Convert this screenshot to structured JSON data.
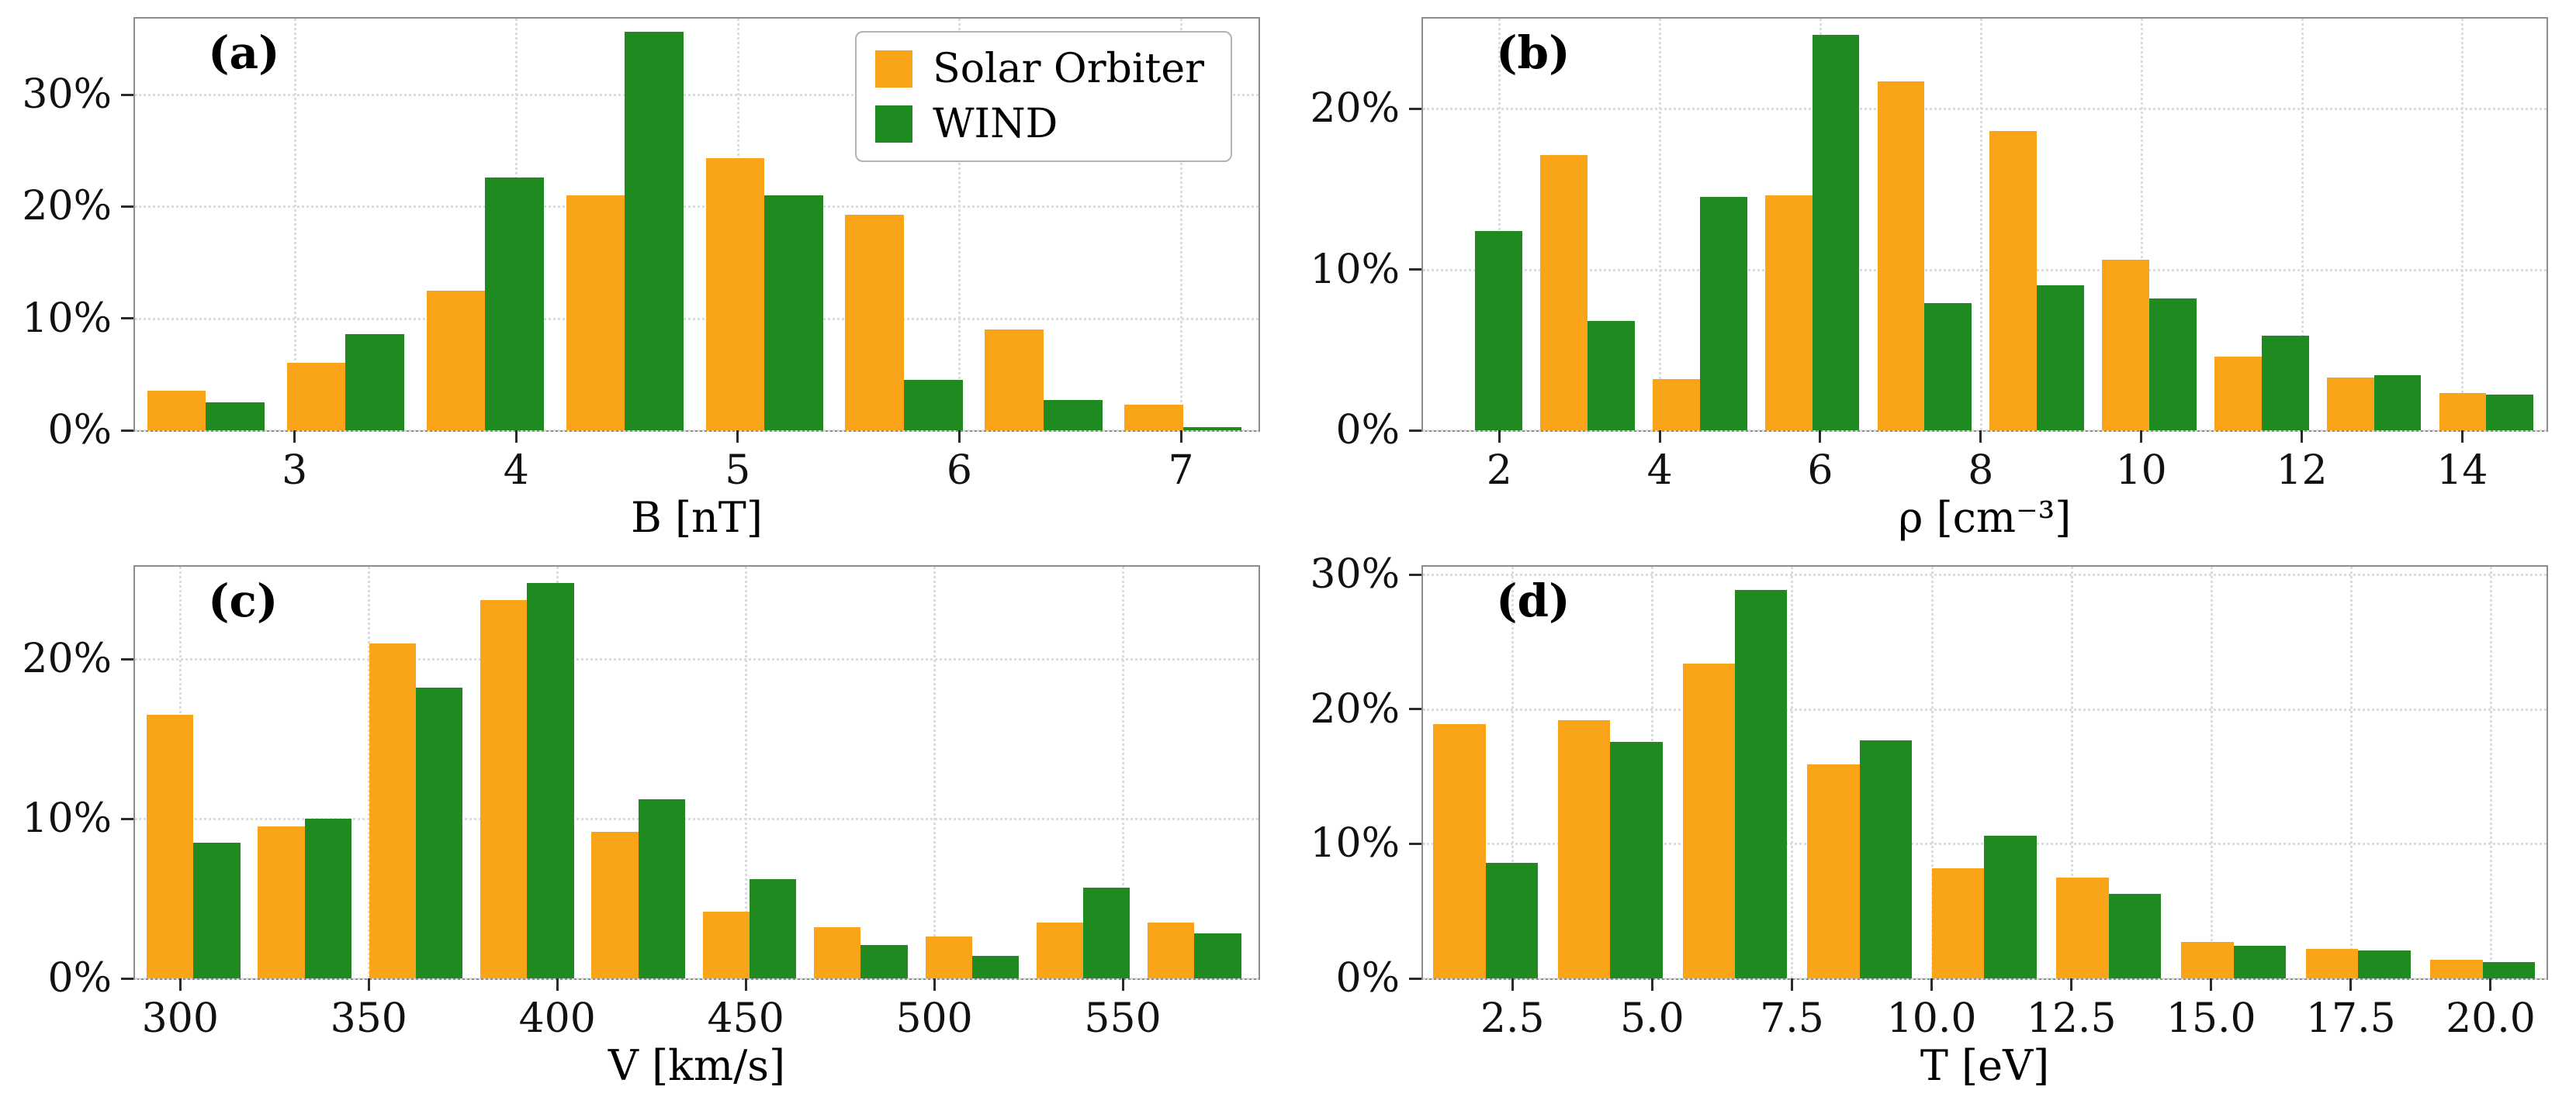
{
  "figure": {
    "background": "#ffffff"
  },
  "colors": {
    "solar_orbiter": "#FAA41A",
    "wind": "#1F8A1F",
    "grid": "#dcdcdc",
    "spine": "#8d8d8d",
    "tick_mark": "#2b2b2b",
    "text": "#000000"
  },
  "legend": {
    "items": [
      {
        "label": "Solar Orbiter",
        "color_key": "solar_orbiter"
      },
      {
        "label": "WIND",
        "color_key": "wind"
      }
    ]
  },
  "chart_data": [
    {
      "type": "bar",
      "panel_label": "(a)",
      "title": "",
      "xlabel": "B [nT]",
      "ylabel": "",
      "grid": true,
      "legend_position": "upper right",
      "xlim": [
        2.28,
        7.35
      ],
      "ylim": [
        0,
        36.8
      ],
      "bin_width": 0.63,
      "categories": [
        2.6,
        3.23,
        3.86,
        4.49,
        5.12,
        5.75,
        6.38,
        7.01
      ],
      "xticks": [
        3,
        4,
        5,
        6,
        7
      ],
      "xtick_labels": [
        "3",
        "4",
        "5",
        "6",
        "7"
      ],
      "yticks": [
        0,
        10,
        20,
        30
      ],
      "ytick_labels": [
        "0%",
        "10%",
        "20%",
        "30%"
      ],
      "series": [
        {
          "name": "Solar Orbiter",
          "color": "#FAA41A",
          "values": [
            3.5,
            6.0,
            12.5,
            21.0,
            24.3,
            19.3,
            9.0,
            2.3
          ]
        },
        {
          "name": "WIND",
          "color": "#1F8A1F",
          "values": [
            2.5,
            8.6,
            22.6,
            35.6,
            21.0,
            4.5,
            2.7,
            0.3
          ]
        }
      ]
    },
    {
      "type": "bar",
      "panel_label": "(b)",
      "title": "",
      "xlabel": "ρ [cm⁻³]",
      "ylabel": "",
      "grid": true,
      "legend_position": "none",
      "xlim": [
        1.05,
        15.05
      ],
      "ylim": [
        0,
        25.6
      ],
      "bin_width": 1.4,
      "categories": [
        1.7,
        3.1,
        4.5,
        5.9,
        7.3,
        8.7,
        10.1,
        11.5,
        12.9,
        14.3
      ],
      "xticks": [
        2,
        4,
        6,
        8,
        10,
        12,
        14
      ],
      "xtick_labels": [
        "2",
        "4",
        "6",
        "8",
        "10",
        "12",
        "14"
      ],
      "yticks": [
        0,
        10,
        20
      ],
      "ytick_labels": [
        "0%",
        "10%",
        "20%"
      ],
      "series": [
        {
          "name": "Solar Orbiter",
          "color": "#FAA41A",
          "values": [
            null,
            17.1,
            3.2,
            14.6,
            21.7,
            18.6,
            10.6,
            4.6,
            3.3,
            2.3
          ]
        },
        {
          "name": "WIND",
          "color": "#1F8A1F",
          "values": [
            12.4,
            6.8,
            14.5,
            24.6,
            7.9,
            9.0,
            8.2,
            5.9,
            3.4,
            2.2
          ]
        }
      ]
    },
    {
      "type": "bar",
      "panel_label": "(c)",
      "title": "",
      "xlabel": "V [km/s]",
      "ylabel": "",
      "grid": true,
      "legend_position": "none",
      "xlim": [
        288,
        586
      ],
      "ylim": [
        0,
        25.8
      ],
      "bin_width": 29.5,
      "categories": [
        303.5,
        333,
        362.5,
        392,
        421.5,
        451,
        480.5,
        510,
        539.5,
        569
      ],
      "xticks": [
        300,
        350,
        400,
        450,
        500,
        550
      ],
      "xtick_labels": [
        "300",
        "350",
        "400",
        "450",
        "500",
        "550"
      ],
      "yticks": [
        0,
        10,
        20
      ],
      "ytick_labels": [
        "0%",
        "10%",
        "20%"
      ],
      "series": [
        {
          "name": "Solar Orbiter",
          "color": "#FAA41A",
          "values": [
            16.5,
            9.5,
            21.0,
            23.7,
            9.2,
            4.2,
            3.2,
            2.6,
            3.5,
            3.5
          ]
        },
        {
          "name": "WIND",
          "color": "#1F8A1F",
          "values": [
            8.5,
            10.0,
            18.2,
            24.8,
            11.2,
            6.2,
            2.1,
            1.4,
            5.7,
            2.8
          ]
        }
      ]
    },
    {
      "type": "bar",
      "panel_label": "(d)",
      "title": "",
      "xlabel": "T [eV]",
      "ylabel": "",
      "grid": true,
      "legend_position": "none",
      "xlim": [
        0.9,
        21.0
      ],
      "ylim": [
        0,
        30.6
      ],
      "bin_width": 2.23,
      "categories": [
        2.02,
        4.25,
        6.48,
        8.71,
        10.94,
        13.17,
        15.4,
        17.63,
        19.86
      ],
      "xticks": [
        2.5,
        5.0,
        7.5,
        10.0,
        12.5,
        15.0,
        17.5,
        20.0
      ],
      "xtick_labels": [
        "2.5",
        "5.0",
        "7.5",
        "10.0",
        "12.5",
        "15.0",
        "17.5",
        "20.0"
      ],
      "yticks": [
        0,
        10,
        20,
        30
      ],
      "ytick_labels": [
        "0%",
        "10%",
        "20%",
        "30%"
      ],
      "series": [
        {
          "name": "Solar Orbiter",
          "color": "#FAA41A",
          "values": [
            18.9,
            19.2,
            23.4,
            15.9,
            8.2,
            7.5,
            2.7,
            2.2,
            1.4
          ]
        },
        {
          "name": "WIND",
          "color": "#1F8A1F",
          "values": [
            8.6,
            17.6,
            28.9,
            17.7,
            10.6,
            6.3,
            2.4,
            2.1,
            1.2
          ]
        }
      ]
    }
  ]
}
